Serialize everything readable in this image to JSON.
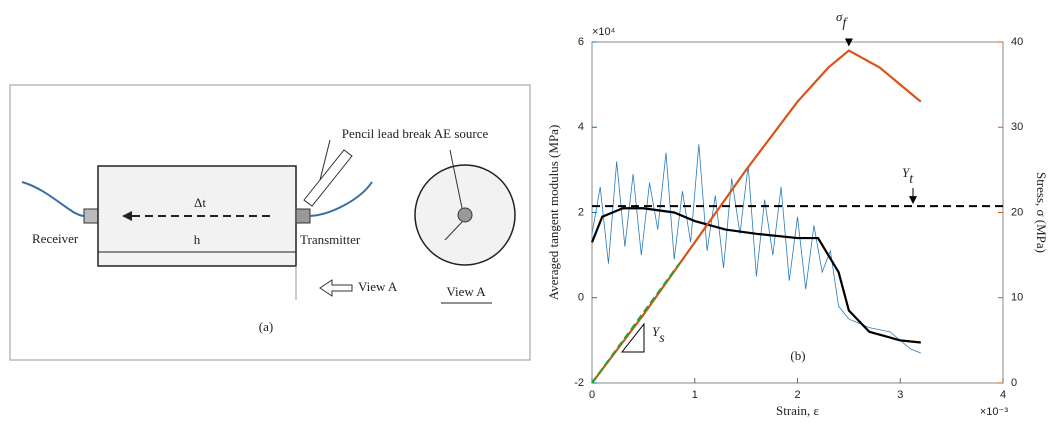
{
  "diagram": {
    "source": "Pencil lead break AE source",
    "delta": "Δt",
    "length": "h",
    "receiver": "Receiver",
    "transmitter": "Transmitter",
    "view_arrow": "View A",
    "view_title": "View A",
    "label": "(a)"
  },
  "chart_data": {
    "type": "line",
    "label": "(b)",
    "x_label": "Strain, ε",
    "y_label": "Averaged tangent modulus (MPa)",
    "y2_label": "Stress, σ (MPa)",
    "x_multiplier": "×10⁻³",
    "y_multiplier": "×10⁴",
    "xlim": [
      0,
      4
    ],
    "xticks": [
      0,
      1,
      2,
      3,
      4
    ],
    "ylim": [
      -2,
      6
    ],
    "yticks": [
      -2,
      0,
      2,
      4,
      6
    ],
    "y_color": "#0072bd",
    "y2lim": [
      0,
      40
    ],
    "y2ticks": [
      0,
      10,
      20,
      30,
      40
    ],
    "y2_color": "#d95319",
    "series": [
      {
        "color": "#2b7bba",
        "width": 0.8,
        "x": [
          0,
          0.08,
          0.16,
          0.24,
          0.32,
          0.4,
          0.48,
          0.56,
          0.64,
          0.72,
          0.8,
          0.88,
          0.96,
          1.04,
          1.12,
          1.2,
          1.28,
          1.36,
          1.44,
          1.52,
          1.6,
          1.68,
          1.76,
          1.84,
          1.92,
          2.0,
          2.08,
          2.16,
          2.24,
          2.32,
          2.4,
          2.5,
          2.7,
          2.9,
          3.0,
          3.1,
          3.2
        ],
        "values": [
          1.5,
          2.6,
          0.8,
          3.2,
          1.2,
          2.9,
          1.0,
          2.7,
          1.6,
          3.4,
          0.9,
          2.5,
          1.3,
          3.6,
          1.1,
          2.4,
          0.7,
          2.8,
          1.5,
          3.1,
          0.5,
          2.3,
          1.0,
          2.6,
          0.4,
          1.9,
          0.2,
          1.7,
          0.6,
          1.1,
          -0.2,
          -0.5,
          -0.7,
          -0.8,
          -1.0,
          -1.2,
          -1.3
        ]
      },
      {
        "color": "#000000",
        "width": 2.2,
        "x": [
          0,
          0.1,
          0.3,
          0.5,
          0.8,
          1.0,
          1.3,
          1.6,
          2.0,
          2.2,
          2.4,
          2.5,
          2.7,
          3.0,
          3.2
        ],
        "values": [
          1.3,
          1.9,
          2.1,
          2.1,
          2.0,
          1.8,
          1.6,
          1.5,
          1.4,
          1.4,
          0.6,
          -0.3,
          -0.8,
          -1.0,
          -1.05
        ]
      },
      {
        "color": "#d95319",
        "width": 2.2,
        "axis": "y2",
        "x": [
          0,
          0.5,
          1.0,
          1.5,
          2.0,
          2.3,
          2.5,
          2.8,
          3.0,
          3.2
        ],
        "values": [
          0,
          8,
          16.5,
          25,
          33,
          37,
          39,
          37,
          35,
          33
        ]
      },
      {
        "color": "#2ca02c",
        "width": 2.2,
        "dash": true,
        "axis": "y2",
        "x": [
          0,
          0.85
        ],
        "values": [
          0,
          14
        ]
      }
    ],
    "threshold": {
      "value": 2.15,
      "label": {
        "symbol": "Y",
        "sub": "t"
      }
    },
    "peak": {
      "symbol": "σ",
      "sub": "f"
    },
    "slope": {
      "symbol": "Y",
      "sub": "s"
    }
  }
}
